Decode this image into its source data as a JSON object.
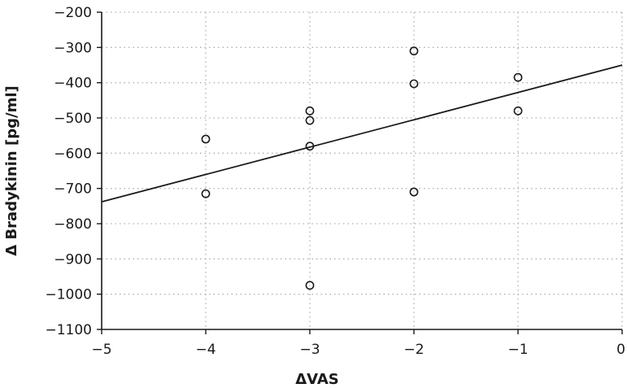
{
  "chart_data": {
    "type": "scatter",
    "title": "",
    "xlabel": "ΔVAS",
    "ylabel": "Δ Bradykinin [pg/ml]",
    "xlim": [
      -5,
      0
    ],
    "ylim": [
      -1100,
      -200
    ],
    "x_ticks": [
      -5,
      -4,
      -3,
      -2,
      -1,
      0
    ],
    "y_ticks": [
      -200,
      -300,
      -400,
      -500,
      -600,
      -700,
      -800,
      -900,
      -1000,
      -1100
    ],
    "x_tick_labels": [
      "−5",
      "−4",
      "−3",
      "−2",
      "−1",
      "0"
    ],
    "y_tick_labels": [
      "−200",
      "−300",
      "−400",
      "−500",
      "−600",
      "−700",
      "−800",
      "−900",
      "−1000",
      "−1100"
    ],
    "grid": true,
    "series": [
      {
        "points": [
          {
            "x": -4,
            "y": -560
          },
          {
            "x": -4,
            "y": -715
          },
          {
            "x": -3,
            "y": -480
          },
          {
            "x": -3,
            "y": -507
          },
          {
            "x": -3,
            "y": -580
          },
          {
            "x": -3,
            "y": -975
          },
          {
            "x": -2,
            "y": -310
          },
          {
            "x": -2,
            "y": -403
          },
          {
            "x": -2,
            "y": -710
          },
          {
            "x": -1,
            "y": -385
          },
          {
            "x": -1,
            "y": -480
          }
        ]
      }
    ],
    "trend_line": {
      "x": [
        -5,
        0
      ],
      "y": [
        -738,
        -350
      ]
    },
    "colors": {
      "marker": "#1a1a1a",
      "grid": "#b0b0b0",
      "line": "#1a1a1a"
    }
  }
}
